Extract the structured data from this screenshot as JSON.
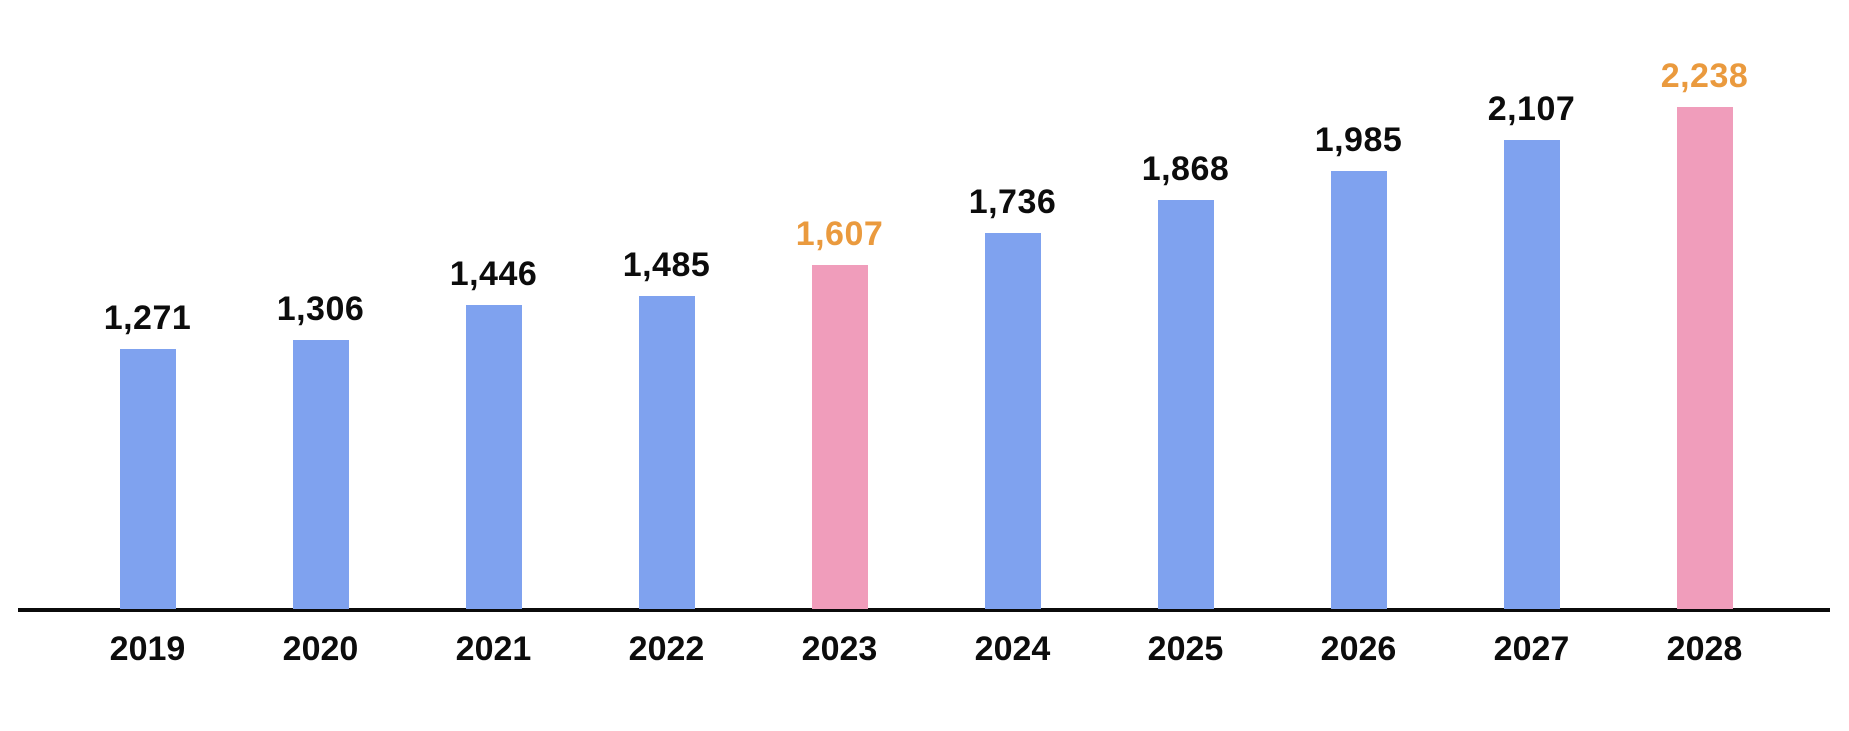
{
  "chart_data": {
    "type": "bar",
    "title": "",
    "xlabel": "",
    "ylabel": "",
    "legend_position": "none",
    "gridlines": false,
    "value_axis_labels_visible": false,
    "categories": [
      "2019",
      "2020",
      "2021",
      "2022",
      "2023",
      "2024",
      "2025",
      "2026",
      "2027",
      "2028"
    ],
    "values": [
      1271,
      1306,
      1446,
      1485,
      1607,
      1736,
      1868,
      1985,
      2107,
      2238
    ],
    "bars": [
      {
        "year": "2019",
        "value": 1271,
        "display_value": "1,271",
        "highlighted": false
      },
      {
        "year": "2020",
        "value": 1306,
        "display_value": "1,306",
        "highlighted": false
      },
      {
        "year": "2021",
        "value": 1446,
        "display_value": "1,446",
        "highlighted": false
      },
      {
        "year": "2022",
        "value": 1485,
        "display_value": "1,485",
        "highlighted": false
      },
      {
        "year": "2023",
        "value": 1607,
        "display_value": "1,607",
        "highlighted": true
      },
      {
        "year": "2024",
        "value": 1736,
        "display_value": "1,736",
        "highlighted": false
      },
      {
        "year": "2025",
        "value": 1868,
        "display_value": "1,868",
        "highlighted": false
      },
      {
        "year": "2026",
        "value": 1985,
        "display_value": "1,985",
        "highlighted": false
      },
      {
        "year": "2027",
        "value": 2107,
        "display_value": "2,107",
        "highlighted": false
      },
      {
        "year": "2028",
        "value": 2238,
        "display_value": "2,238",
        "highlighted": true
      }
    ],
    "colors": {
      "bar_default": "#7FA2EF",
      "bar_highlight": "#F09DBB",
      "value_label_default": "#0C0C0C",
      "value_label_highlight": "#EA9A3E",
      "year_label": "#0C0C0C",
      "axis_line": "#0B0B0B",
      "background": "#FFFFFF"
    }
  }
}
